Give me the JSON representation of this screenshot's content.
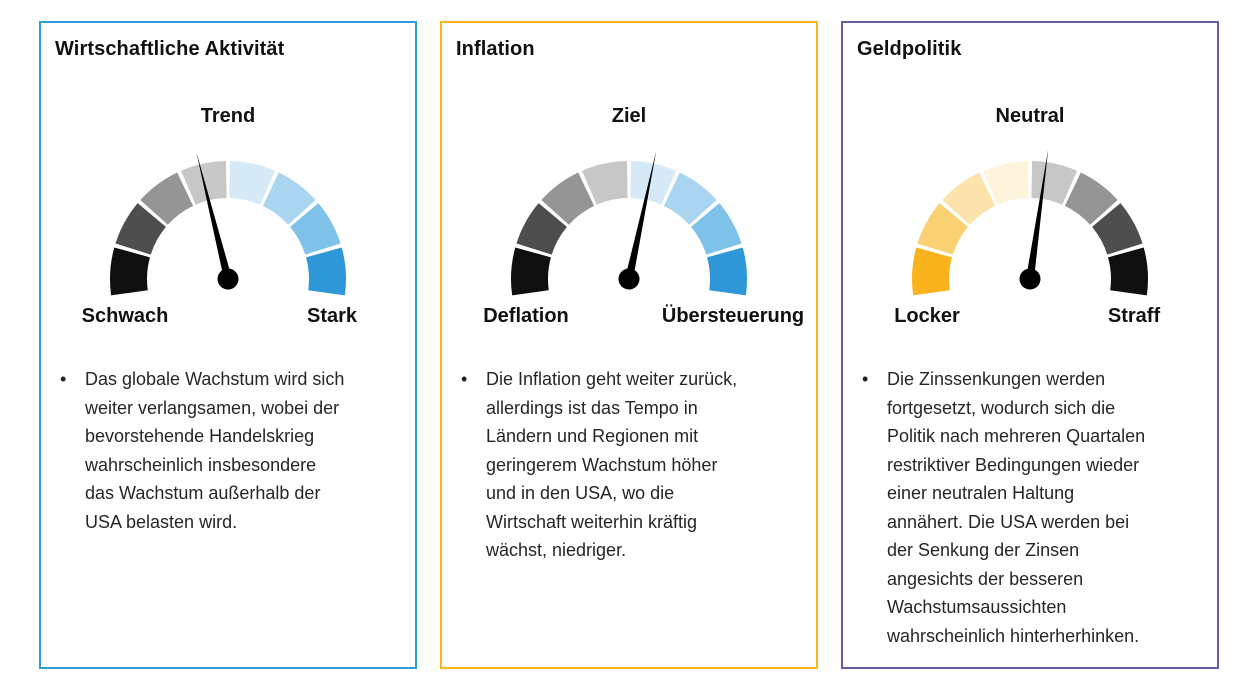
{
  "panels": [
    {
      "title": "Wirtschaftliche Aktivität",
      "border_color": "#2b9fd9",
      "gauge": {
        "top_label": "Trend",
        "left_label": "Schwach",
        "right_label": "Stark",
        "needle_angle_deg": -14,
        "needle_color": "#000000",
        "segment_colors": [
          "#0f0f0f",
          "#4e4e4e",
          "#959595",
          "#c7c7c7",
          "#d5e9f7",
          "#a9d5f1",
          "#7fc2e9",
          "#2d97d7"
        ]
      },
      "bullet_marker": "•",
      "bullet": "Das globale Wachstum wird sich\nweiter verlangsamen, wobei der\nbevorstehende Handelskrieg\nwahrscheinlich insbesondere\ndas Wachstum außerhalb der\nUSA belasten wird."
    },
    {
      "title": "Inflation",
      "border_color": "#fbb516",
      "gauge": {
        "top_label": "Ziel",
        "left_label": "Deflation",
        "right_label": "Übersteuerung",
        "needle_angle_deg": 12,
        "needle_color": "#000000",
        "segment_colors": [
          "#0f0f0f",
          "#4e4e4e",
          "#959595",
          "#c7c7c7",
          "#d5e9f7",
          "#a9d5f1",
          "#7fc2e9",
          "#2d97d7"
        ]
      },
      "bullet_marker": "•",
      "bullet": "Die Inflation geht weiter zurück,\nallerdings ist das Tempo in\nLändern und Regionen mit\ngeringerem Wachstum höher\nund in den USA, wo die\nWirtschaft weiterhin kräftig\nwächst, niedriger."
    },
    {
      "title": "Geldpolitik",
      "border_color": "#6a5aa5",
      "gauge": {
        "top_label": "Neutral",
        "left_label": "Locker",
        "right_label": "Straff",
        "needle_angle_deg": 8,
        "needle_color": "#000000",
        "segment_colors": [
          "#fab31c",
          "#fad172",
          "#fce3ab",
          "#fef3db",
          "#c7c7c7",
          "#959595",
          "#4e4e4e",
          "#0f0f0f"
        ]
      },
      "bullet_marker": "•",
      "bullet": "Die Zinssenkungen werden\nfortgesetzt, wodurch sich die\nPolitik nach mehreren Quartalen\nrestriktiver Bedingungen wieder\neiner neutralen Haltung\nannähert. Die USA werden bei\nder Senkung der Zinsen\nangesichts der besseren\nWachstumsaussichten\nwahrscheinlich hinterherhinken."
    }
  ],
  "chart_data": [
    {
      "type": "gauge",
      "title": "Wirtschaftliche Aktivität",
      "scale_left_label": "Schwach",
      "scale_center_label": "Trend",
      "scale_right_label": "Stark",
      "segments": 8,
      "span_deg": 196,
      "needle_angle_deg": -14,
      "reading": "knapp unter Trend (leicht links der Mitte)"
    },
    {
      "type": "gauge",
      "title": "Inflation",
      "scale_left_label": "Deflation",
      "scale_center_label": "Ziel",
      "scale_right_label": "Übersteuerung",
      "segments": 8,
      "span_deg": 196,
      "needle_angle_deg": 12,
      "reading": "leicht über Ziel (leicht rechts der Mitte)"
    },
    {
      "type": "gauge",
      "title": "Geldpolitik",
      "scale_left_label": "Locker",
      "scale_center_label": "Neutral",
      "scale_right_label": "Straff",
      "segments": 8,
      "span_deg": 196,
      "needle_angle_deg": 8,
      "reading": "nahe Neutral (minimal rechts der Mitte)"
    }
  ]
}
